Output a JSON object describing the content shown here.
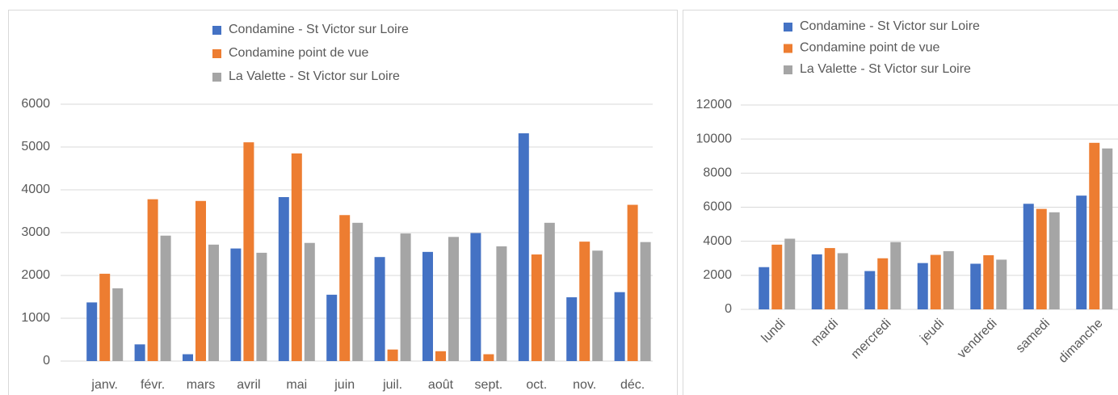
{
  "chart_data": [
    {
      "type": "bar",
      "categories": [
        "janv.",
        "févr.",
        "mars",
        "avril",
        "mai",
        "juin",
        "juil.",
        "août",
        "sept.",
        "oct.",
        "nov.",
        "déc."
      ],
      "series": [
        {
          "name": "Condamine - St Victor sur Loire",
          "color": "#4472c4",
          "values": [
            1370,
            390,
            160,
            2630,
            3830,
            1550,
            2430,
            2550,
            2990,
            5320,
            1490,
            1610
          ]
        },
        {
          "name": "Condamine point de vue",
          "color": "#ed7d31",
          "values": [
            2040,
            3780,
            3740,
            5110,
            4850,
            3410,
            270,
            230,
            160,
            2490,
            2790,
            3650
          ]
        },
        {
          "name": "La Valette - St Victor sur Loire",
          "color": "#a5a5a5",
          "values": [
            1700,
            2930,
            2720,
            2530,
            2760,
            3230,
            2980,
            2900,
            2680,
            3230,
            2580,
            2780
          ]
        }
      ],
      "ylim": [
        0,
        6000
      ],
      "yticks": [
        0,
        1000,
        2000,
        3000,
        4000,
        5000,
        6000
      ],
      "grid": true,
      "legend": "top"
    },
    {
      "type": "bar",
      "categories": [
        "lundi",
        "mardi",
        "mercredi",
        "jeudi",
        "vendredi",
        "samedi",
        "dimanche"
      ],
      "series": [
        {
          "name": "Condamine - St Victor sur Loire",
          "color": "#4472c4",
          "values": [
            2480,
            3230,
            2250,
            2720,
            2680,
            6200,
            6680
          ]
        },
        {
          "name": "Condamine point de vue",
          "color": "#ed7d31",
          "values": [
            3800,
            3600,
            3000,
            3200,
            3180,
            5900,
            9780
          ]
        },
        {
          "name": "La Valette - St Victor sur Loire",
          "color": "#a5a5a5",
          "values": [
            4150,
            3300,
            3950,
            3420,
            2920,
            5700,
            9450
          ]
        }
      ],
      "ylim": [
        0,
        12000
      ],
      "yticks": [
        0,
        2000,
        4000,
        6000,
        8000,
        10000,
        12000
      ],
      "grid": true,
      "legend": "top"
    }
  ]
}
